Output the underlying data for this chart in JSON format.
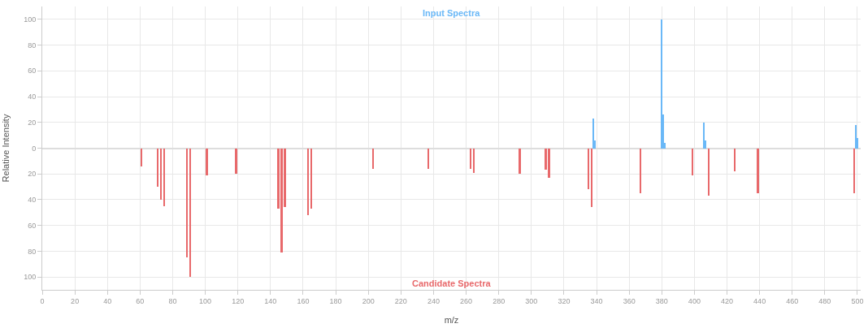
{
  "chart_data": {
    "type": "bar",
    "xlabel": "m/z",
    "ylabel": "Relative Intensity",
    "series": [
      {
        "name": "Input Spectra",
        "color": "#6ab8f7",
        "x": [
          338,
          339,
          380,
          381,
          382,
          406,
          407,
          499,
          500
        ],
        "values": [
          23,
          6,
          100,
          26,
          4,
          20,
          6,
          18,
          8
        ]
      },
      {
        "name": "Candidate Spectra",
        "color": "#e8696b",
        "x": [
          61,
          71,
          73,
          75,
          89,
          91,
          101,
          119,
          145,
          147,
          149,
          163,
          165,
          203,
          237,
          263,
          265,
          293,
          309,
          311,
          335,
          337,
          367,
          399,
          409,
          425,
          439,
          498
        ],
        "values": [
          -14,
          -30,
          -40,
          -45,
          -85,
          -100,
          -21,
          -20,
          -47,
          -81,
          -46,
          -52,
          -47,
          -16,
          -16,
          -16,
          -19,
          -20,
          -17,
          -23,
          -32,
          -46,
          -35,
          -21,
          -37,
          -18,
          -35,
          -35
        ]
      }
    ],
    "xlim": [
      0,
      502
    ],
    "xticks": [
      0,
      20,
      40,
      60,
      80,
      100,
      120,
      140,
      160,
      180,
      200,
      220,
      240,
      260,
      280,
      300,
      320,
      340,
      360,
      380,
      400,
      420,
      440,
      460,
      480,
      500
    ],
    "ylim": [
      -110,
      110
    ],
    "yticks": [
      {
        "value": -100,
        "label": "100"
      },
      {
        "value": -80,
        "label": "80"
      },
      {
        "value": -60,
        "label": "60"
      },
      {
        "value": -40,
        "label": "40"
      },
      {
        "value": -20,
        "label": "20"
      },
      0,
      20,
      40,
      60,
      80,
      100
    ],
    "grid": true,
    "legend": false
  }
}
